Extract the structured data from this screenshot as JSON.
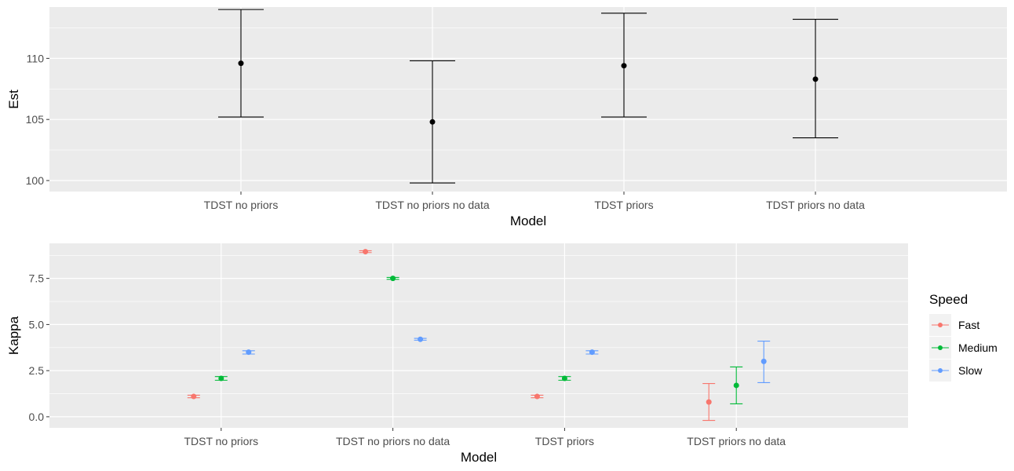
{
  "chart_data": [
    {
      "type": "errorbar",
      "title": "",
      "xlabel": "Model",
      "ylabel": "Est",
      "categories": [
        "TDST no priors",
        "TDST no priors no data",
        "TDST priors",
        "TDST priors no data"
      ],
      "ylim": [
        99.1,
        114.2
      ],
      "yticks": [
        100,
        105,
        110
      ],
      "ytick_labels": [
        "100",
        "105",
        "110"
      ],
      "grid": true,
      "series": [
        {
          "color": "#000000",
          "points": [
            {
              "category": "TDST no priors",
              "est": 109.6,
              "low": 105.2,
              "high": 114.0
            },
            {
              "category": "TDST no priors no data",
              "est": 104.8,
              "low": 99.8,
              "high": 109.8
            },
            {
              "category": "TDST priors",
              "est": 109.4,
              "low": 105.2,
              "high": 113.7
            },
            {
              "category": "TDST priors no data",
              "est": 108.3,
              "low": 103.5,
              "high": 113.2
            }
          ]
        }
      ]
    },
    {
      "type": "errorbar",
      "title": "",
      "xlabel": "Model",
      "ylabel": "Kappa",
      "categories": [
        "TDST no priors",
        "TDST no priors no data",
        "TDST priors",
        "TDST priors no data"
      ],
      "ylim": [
        -0.6,
        9.4
      ],
      "yticks": [
        0,
        2.5,
        5,
        7.5
      ],
      "ytick_labels": [
        "0.0",
        "2.5",
        "5.0",
        "7.5"
      ],
      "grid": true,
      "legend": {
        "title": "Speed",
        "placement": "right",
        "entries": [
          "Fast",
          "Medium",
          "Slow"
        ]
      },
      "series": [
        {
          "name": "Fast",
          "color": "#F8766D",
          "points": [
            {
              "category": "TDST no priors",
              "est": 1.1,
              "low": 1.03,
              "high": 1.17
            },
            {
              "category": "TDST no priors no data",
              "est": 8.95,
              "low": 8.9,
              "high": 9.0
            },
            {
              "category": "TDST priors",
              "est": 1.1,
              "low": 1.03,
              "high": 1.17
            },
            {
              "category": "TDST priors no data",
              "est": 0.8,
              "low": -0.2,
              "high": 1.8
            }
          ]
        },
        {
          "name": "Medium",
          "color": "#00BA38",
          "points": [
            {
              "category": "TDST no priors",
              "est": 2.08,
              "low": 1.98,
              "high": 2.18
            },
            {
              "category": "TDST no priors no data",
              "est": 7.5,
              "low": 7.45,
              "high": 7.55
            },
            {
              "category": "TDST priors",
              "est": 2.08,
              "low": 1.98,
              "high": 2.18
            },
            {
              "category": "TDST priors no data",
              "est": 1.7,
              "low": 0.7,
              "high": 2.7
            }
          ]
        },
        {
          "name": "Slow",
          "color": "#619CFF",
          "points": [
            {
              "category": "TDST no priors",
              "est": 3.5,
              "low": 3.4,
              "high": 3.58
            },
            {
              "category": "TDST no priors no data",
              "est": 4.2,
              "low": 4.15,
              "high": 4.25
            },
            {
              "category": "TDST priors",
              "est": 3.5,
              "low": 3.4,
              "high": 3.58
            },
            {
              "category": "TDST priors no data",
              "est": 3.0,
              "low": 1.85,
              "high": 4.1
            }
          ]
        }
      ]
    }
  ]
}
